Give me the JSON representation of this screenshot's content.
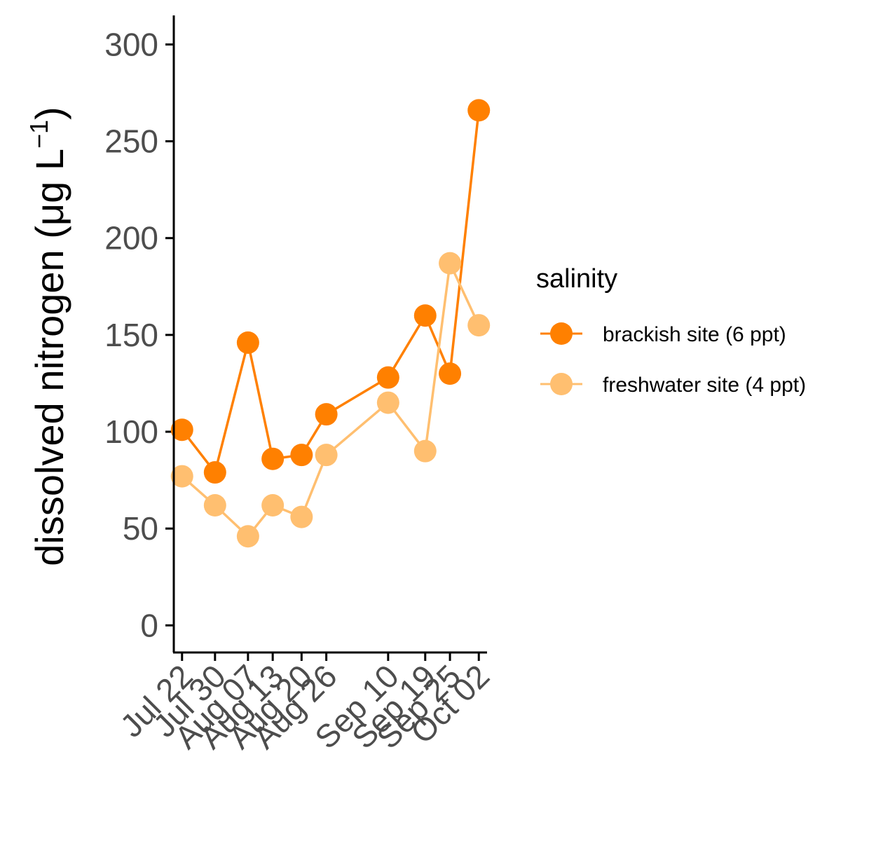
{
  "chart_data": {
    "type": "line",
    "x": [
      "Jul 22",
      "Jul 30",
      "Aug 07",
      "Aug 13",
      "Aug 20",
      "Aug 26",
      "Sep 10",
      "Sep 19",
      "Sep 25",
      "Oct 02"
    ],
    "x_day_of_year": [
      203,
      211,
      219,
      225,
      232,
      238,
      253,
      262,
      268,
      275
    ],
    "series": [
      {
        "name": "brackish site (6 ppt)",
        "color": "#FF8000",
        "values": [
          101,
          79,
          146,
          86,
          88,
          109,
          128,
          160,
          130,
          266
        ]
      },
      {
        "name": "freshwater site (4 ppt)",
        "color": "#FFBF70",
        "values": [
          77,
          62,
          46,
          62,
          56,
          88,
          115,
          90,
          187,
          155
        ]
      }
    ],
    "xlabel": "",
    "ylabel_main": "dissolved nitrogen (μg L",
    "ylabel_sup": "−1",
    "ylabel_close": ")",
    "ylim": [
      -14,
      315
    ],
    "yticks": [
      0,
      50,
      100,
      150,
      200,
      250,
      300
    ],
    "legend": {
      "title": "salinity",
      "position": "right"
    },
    "grid": false
  }
}
